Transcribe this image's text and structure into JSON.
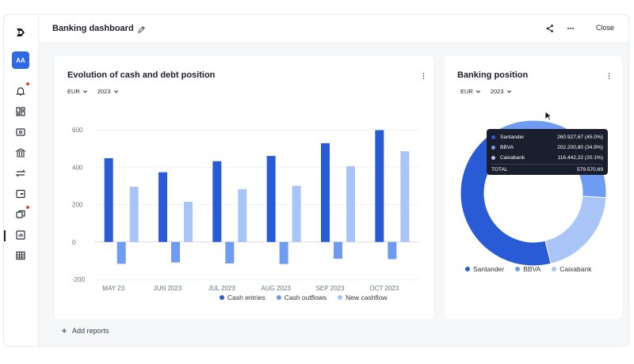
{
  "header": {
    "title": "Banking dashboard",
    "close_label": "Close"
  },
  "sidebar": {
    "avatar_initials": "AA",
    "items": [
      {
        "icon": "logo-icon"
      },
      {
        "icon": "bell-icon",
        "badge": true
      },
      {
        "icon": "dashboard-icon"
      },
      {
        "icon": "wallet-icon"
      },
      {
        "icon": "bank-icon"
      },
      {
        "icon": "transfer-icon"
      },
      {
        "icon": "card-icon"
      },
      {
        "icon": "copy-icon",
        "badge": true
      },
      {
        "icon": "reports-icon",
        "active": true
      },
      {
        "icon": "table-icon"
      }
    ]
  },
  "cash_card": {
    "title": "Evolution of cash and debt position",
    "currency": "EUR",
    "year": "2023"
  },
  "banking_card": {
    "title": "Banking position",
    "currency": "EUR",
    "year": "2023"
  },
  "tooltip": {
    "rows": [
      {
        "name": "Santander",
        "value": "260.927,67 (45.0%)",
        "color": "#2a5bd7"
      },
      {
        "name": "BBVA",
        "value": "202.200,80 (34.9%)",
        "color": "#6f9cf2"
      },
      {
        "name": "Caixabank",
        "value": "116.442,22 (20.1%)",
        "color": "#a9c4f7"
      }
    ],
    "total_label": "TOTAL",
    "total_value": "579.570,69"
  },
  "add_reports_label": "Add reports",
  "colors": {
    "cash_entries": "#2a5bd7",
    "cash_outflows": "#6f9cf2",
    "new_cashflow": "#a9c4f7",
    "accent": "#2f6ae6"
  },
  "chart_data": [
    {
      "type": "bar",
      "categories": [
        "MAY 23",
        "JUN 2023",
        "JUL 2023",
        "AUG 2023",
        "SEP 2023",
        "OCT 2023"
      ],
      "series": [
        {
          "name": "Cash entries",
          "values": [
            448,
            373,
            432,
            460,
            528,
            598
          ]
        },
        {
          "name": "Cash outflows",
          "values": [
            -117,
            -110,
            -115,
            -118,
            -90,
            -92
          ]
        },
        {
          "name": "New cashflow",
          "values": [
            295,
            215,
            283,
            300,
            405,
            485
          ]
        }
      ],
      "yticks": [
        600,
        400,
        200,
        0,
        -200
      ],
      "ylim": [
        -200,
        600
      ],
      "grid": true,
      "legend": "bottom"
    },
    {
      "type": "pie",
      "donut": true,
      "categories": [
        "Santander",
        "BBVA",
        "Caixabank"
      ],
      "values": [
        260927.67,
        202200.8,
        116442.22
      ],
      "legend": "bottom"
    }
  ]
}
